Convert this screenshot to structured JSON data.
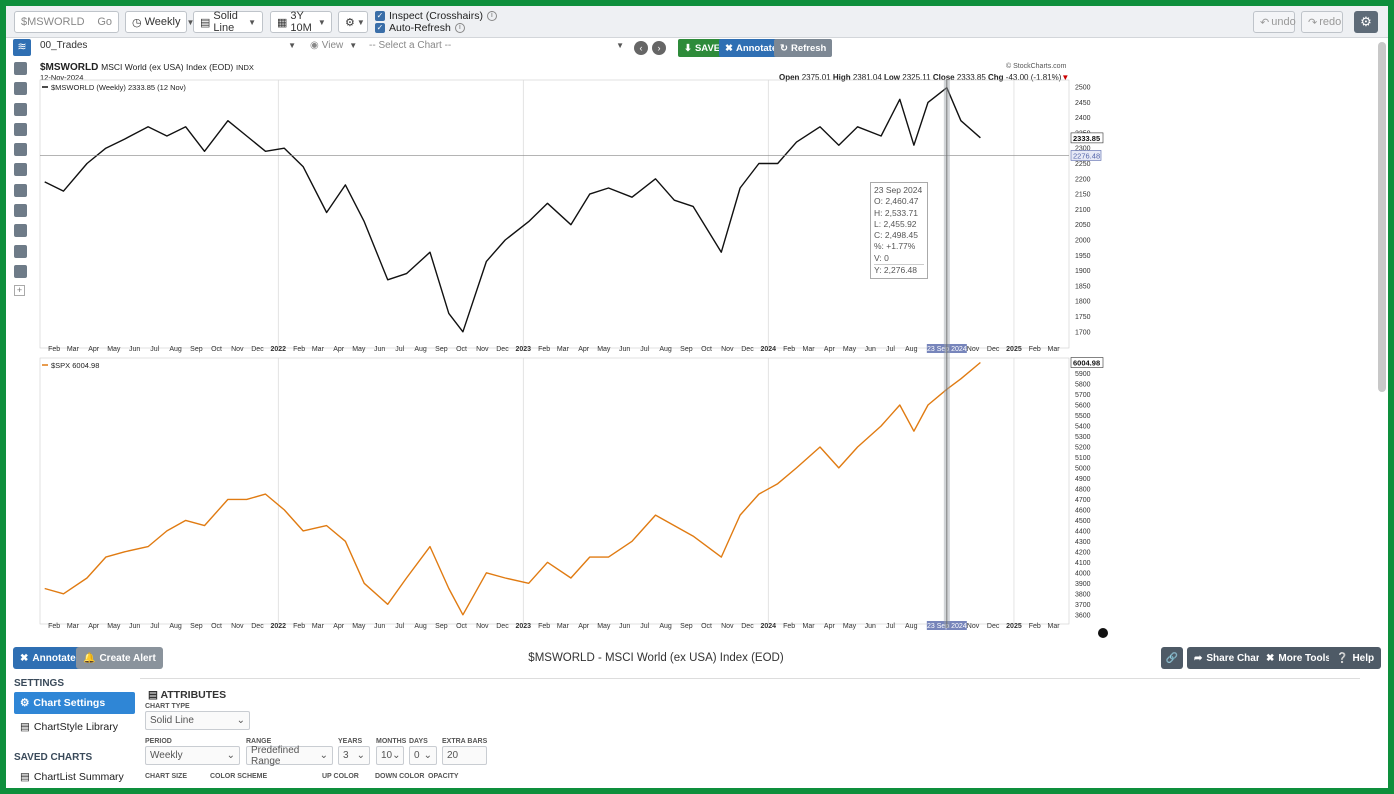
{
  "toolbar": {
    "symbol_value": "$MSWORLD",
    "go_label": "Go",
    "period": "Weekly",
    "chart_type": "Solid Line",
    "range": "3Y 10M",
    "inspect_label": "Inspect (Crosshairs)",
    "autorefresh_label": "Auto-Refresh",
    "undo_label": "undo",
    "redo_label": "redo"
  },
  "chartbar": {
    "list_name": "00_Trades",
    "view_label": "View",
    "select_chart_placeholder": "-- Select a Chart --",
    "save_label": "SAVE",
    "annotate_label": "Annotate",
    "refresh_label": "Refresh"
  },
  "header": {
    "symbol": "$MSWORLD",
    "name": "MSCI World (ex USA) Index (EOD)",
    "exchange": "INDX",
    "date": "12-Nov-2024",
    "watermark": "© StockCharts.com",
    "open_label": "Open",
    "open": "2375.01",
    "high_label": "High",
    "high": "2381.04",
    "low_label": "Low",
    "low": "2325.11",
    "close_label": "Close",
    "close": "2333.85",
    "chg_label": "Chg",
    "chg": "-43.00 (-1.81%)",
    "legend_top": "$MSWORLD (Weekly) 2333.85 (12 Nov)",
    "legend_bottom": "$SPX 6004.98"
  },
  "tooltip": {
    "date": "23 Sep 2024",
    "o": "O: 2,460.47",
    "h": "H: 2,533.71",
    "l": "L: 2,455.92",
    "c": "C: 2,498.45",
    "pct": "%: +1.77%",
    "v": "V: 0",
    "y": "Y: 2,276.48"
  },
  "colors": {
    "top_line": "#111111",
    "bottom_line": "#e07b12",
    "accent_blue": "#2f6fb3",
    "save_green": "#2e8b3a"
  },
  "chart_data": [
    {
      "type": "line",
      "title": "$MSWORLD (Weekly) 2333.85 (12 Nov)",
      "yticks": [
        1700,
        1750,
        1800,
        1850,
        1900,
        1950,
        2000,
        2050,
        2100,
        2150,
        2200,
        2250,
        2300,
        2350,
        2400,
        2450,
        2500
      ],
      "ylim": [
        1660,
        2510
      ],
      "last_value_label": "2333.85",
      "crosshair_value_label": "2276.48",
      "x": [
        "2021-01-18",
        "2021-02-15",
        "2021-03-22",
        "2021-04-19",
        "2021-05-17",
        "2021-06-21",
        "2021-07-19",
        "2021-08-16",
        "2021-09-13",
        "2021-10-18",
        "2021-11-15",
        "2021-12-13",
        "2022-01-10",
        "2022-02-07",
        "2022-03-14",
        "2022-04-11",
        "2022-05-09",
        "2022-06-13",
        "2022-07-11",
        "2022-08-15",
        "2022-09-12",
        "2022-10-03",
        "2022-11-07",
        "2022-12-05",
        "2023-01-09",
        "2023-02-06",
        "2023-03-13",
        "2023-04-10",
        "2023-05-08",
        "2023-06-12",
        "2023-07-17",
        "2023-08-14",
        "2023-09-11",
        "2023-10-23",
        "2023-11-20",
        "2023-12-18",
        "2024-01-15",
        "2024-02-12",
        "2024-03-18",
        "2024-04-15",
        "2024-05-13",
        "2024-06-17",
        "2024-07-15",
        "2024-08-05",
        "2024-08-26",
        "2024-09-23",
        "2024-10-14",
        "2024-11-12"
      ],
      "values": [
        2190,
        2160,
        2250,
        2300,
        2330,
        2370,
        2340,
        2370,
        2290,
        2390,
        2340,
        2290,
        2300,
        2240,
        2090,
        2180,
        2060,
        1870,
        1890,
        1960,
        1760,
        1700,
        1930,
        2000,
        2060,
        2120,
        2050,
        2150,
        2170,
        2140,
        2200,
        2130,
        2110,
        1960,
        2170,
        2250,
        2250,
        2320,
        2370,
        2310,
        2370,
        2340,
        2460,
        2310,
        2450,
        2498,
        2390,
        2334
      ]
    },
    {
      "type": "line",
      "title": "$SPX 6004.98",
      "yticks": [
        3600,
        3700,
        3800,
        3900,
        4000,
        4100,
        4200,
        4300,
        4400,
        4500,
        4600,
        4700,
        4800,
        4900,
        5000,
        5100,
        5200,
        5300,
        5400,
        5500,
        5600,
        5700,
        5800,
        5900
      ],
      "ylim": [
        3550,
        6010
      ],
      "last_value_label": "6004.98",
      "x": [
        "2021-01-18",
        "2021-02-15",
        "2021-03-22",
        "2021-04-19",
        "2021-05-17",
        "2021-06-21",
        "2021-07-19",
        "2021-08-16",
        "2021-09-13",
        "2021-10-18",
        "2021-11-15",
        "2021-12-13",
        "2022-01-10",
        "2022-02-07",
        "2022-03-14",
        "2022-04-11",
        "2022-05-09",
        "2022-06-13",
        "2022-07-11",
        "2022-08-15",
        "2022-09-12",
        "2022-10-03",
        "2022-11-07",
        "2022-12-05",
        "2023-01-09",
        "2023-02-06",
        "2023-03-13",
        "2023-04-10",
        "2023-05-08",
        "2023-06-12",
        "2023-07-17",
        "2023-08-14",
        "2023-09-11",
        "2023-10-23",
        "2023-11-20",
        "2023-12-18",
        "2024-01-15",
        "2024-02-12",
        "2024-03-18",
        "2024-04-15",
        "2024-05-13",
        "2024-06-17",
        "2024-07-15",
        "2024-08-05",
        "2024-08-26",
        "2024-09-23",
        "2024-10-14",
        "2024-11-12"
      ],
      "values": [
        3850,
        3800,
        3950,
        4150,
        4200,
        4250,
        4400,
        4500,
        4450,
        4700,
        4700,
        4750,
        4600,
        4400,
        4450,
        4300,
        3900,
        3700,
        3950,
        4250,
        3850,
        3600,
        4000,
        3950,
        3900,
        4100,
        3950,
        4150,
        4150,
        4300,
        4550,
        4450,
        4350,
        4150,
        4550,
        4750,
        4850,
        5000,
        5200,
        5000,
        5200,
        5400,
        5600,
        5350,
        5600,
        5750,
        5850,
        6005
      ]
    }
  ],
  "xaxis_labels": [
    {
      "t": "Feb",
      "d": "2021-02-01"
    },
    {
      "t": "Mar",
      "d": "2021-03-01"
    },
    {
      "t": "Apr",
      "d": "2021-04-01"
    },
    {
      "t": "May",
      "d": "2021-05-01"
    },
    {
      "t": "Jun",
      "d": "2021-06-01"
    },
    {
      "t": "Jul",
      "d": "2021-07-01"
    },
    {
      "t": "Aug",
      "d": "2021-08-01"
    },
    {
      "t": "Sep",
      "d": "2021-09-01"
    },
    {
      "t": "Oct",
      "d": "2021-10-01"
    },
    {
      "t": "Nov",
      "d": "2021-11-01"
    },
    {
      "t": "Dec",
      "d": "2021-12-01"
    },
    {
      "t": "2022",
      "d": "2022-01-01",
      "bold": true
    },
    {
      "t": "Feb",
      "d": "2022-02-01"
    },
    {
      "t": "Mar",
      "d": "2022-03-01"
    },
    {
      "t": "Apr",
      "d": "2022-04-01"
    },
    {
      "t": "May",
      "d": "2022-05-01"
    },
    {
      "t": "Jun",
      "d": "2022-06-01"
    },
    {
      "t": "Jul",
      "d": "2022-07-01"
    },
    {
      "t": "Aug",
      "d": "2022-08-01"
    },
    {
      "t": "Sep",
      "d": "2022-09-01"
    },
    {
      "t": "Oct",
      "d": "2022-10-01"
    },
    {
      "t": "Nov",
      "d": "2022-11-01"
    },
    {
      "t": "Dec",
      "d": "2022-12-01"
    },
    {
      "t": "2023",
      "d": "2023-01-01",
      "bold": true
    },
    {
      "t": "Feb",
      "d": "2023-02-01"
    },
    {
      "t": "Mar",
      "d": "2023-03-01"
    },
    {
      "t": "Apr",
      "d": "2023-04-01"
    },
    {
      "t": "May",
      "d": "2023-05-01"
    },
    {
      "t": "Jun",
      "d": "2023-06-01"
    },
    {
      "t": "Jul",
      "d": "2023-07-01"
    },
    {
      "t": "Aug",
      "d": "2023-08-01"
    },
    {
      "t": "Sep",
      "d": "2023-09-01"
    },
    {
      "t": "Oct",
      "d": "2023-10-01"
    },
    {
      "t": "Nov",
      "d": "2023-11-01"
    },
    {
      "t": "Dec",
      "d": "2023-12-01"
    },
    {
      "t": "2024",
      "d": "2024-01-01",
      "bold": true
    },
    {
      "t": "Feb",
      "d": "2024-02-01"
    },
    {
      "t": "Mar",
      "d": "2024-03-01"
    },
    {
      "t": "Apr",
      "d": "2024-04-01"
    },
    {
      "t": "May",
      "d": "2024-05-01"
    },
    {
      "t": "Jun",
      "d": "2024-06-01"
    },
    {
      "t": "Jul",
      "d": "2024-07-01"
    },
    {
      "t": "Aug",
      "d": "2024-08-01"
    },
    {
      "t": "23 Sep 2024",
      "d": "2024-09-23",
      "hl": true
    },
    {
      "t": "Nov",
      "d": "2024-11-01"
    },
    {
      "t": "Dec",
      "d": "2024-12-01"
    },
    {
      "t": "2025",
      "d": "2025-01-01",
      "bold": true
    },
    {
      "t": "Feb",
      "d": "2025-02-01"
    },
    {
      "t": "Mar",
      "d": "2025-03-01"
    }
  ],
  "bottombar": {
    "annotate": "Annotate",
    "create_alert": "Create Alert",
    "title": "$MSWORLD - MSCI World (ex USA) Index (EOD)",
    "share_chart": "Share Chart",
    "more_tools": "More Tools",
    "help": "Help"
  },
  "settings": {
    "settings_head": "SETTINGS",
    "chart_settings": "Chart Settings",
    "chartstyle_library": "ChartStyle Library",
    "saved_charts_head": "SAVED CHARTS",
    "chartlist_summary": "ChartList Summary",
    "attributes_head": "ATTRIBUTES",
    "chart_type_label": "CHART TYPE",
    "chart_type_value": "Solid Line",
    "period_label": "PERIOD",
    "period_value": "Weekly",
    "range_label": "RANGE",
    "range_value": "Predefined Range",
    "years_label": "YEARS",
    "years_value": "3",
    "months_label": "MONTHS",
    "months_value": "10",
    "days_label": "DAYS",
    "days_value": "0",
    "extra_bars_label": "EXTRA BARS",
    "extra_bars_value": "20",
    "chart_size_label": "CHART SIZE",
    "color_scheme_label": "COLOR SCHEME",
    "up_color_label": "UP COLOR",
    "down_color_label": "DOWN COLOR",
    "opacity_label": "OPACITY"
  }
}
